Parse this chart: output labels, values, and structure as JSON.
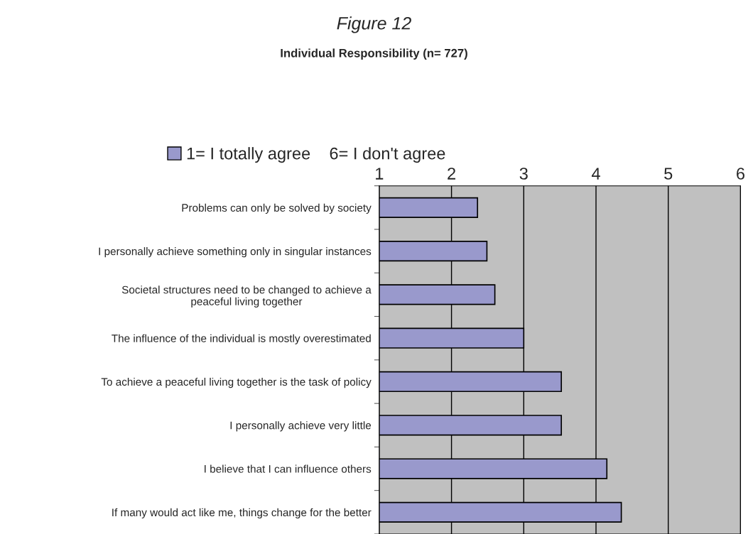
{
  "chart_data": {
    "type": "bar",
    "orientation": "horizontal",
    "title": "Figure 12",
    "subtitle": "Individual Responsibility (n= 727)",
    "categories": [
      "Problems can only be solved by society",
      "I personally achieve something only in singular instances",
      "Societal structures need to be changed to achieve a\npeaceful living together",
      "The influence of the individual is mostly overestimated",
      "To achieve a peaceful living together is the task of policy",
      "I personally achieve very little",
      "I believe that I can influence others",
      "If many would act like me, things change for the better"
    ],
    "series": [
      {
        "name": "1= I totally agree    6= I don't agree",
        "color": "#9999cc",
        "values": [
          2.36,
          2.49,
          2.6,
          3.0,
          3.52,
          3.52,
          4.15,
          4.35
        ]
      }
    ],
    "xlim": [
      1,
      6
    ],
    "xticks": [
      1,
      2,
      3,
      4,
      5,
      6
    ],
    "grid": "x",
    "legend": "top"
  }
}
